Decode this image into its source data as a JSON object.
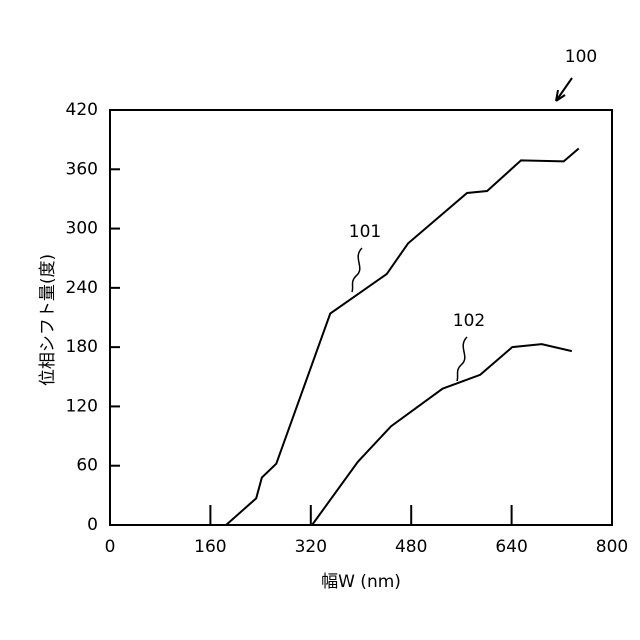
{
  "chart_data": {
    "type": "line",
    "x_label": "幅W (nm)",
    "y_label": "位相シフト量(度)",
    "annotation": "100",
    "xlim": [
      0,
      800
    ],
    "xticks": [
      0,
      160,
      320,
      480,
      640,
      800
    ],
    "ylim": [
      0,
      420
    ],
    "yticks": [
      0,
      60,
      120,
      180,
      240,
      300,
      360,
      420
    ],
    "series": [
      {
        "name": "101",
        "color": "#000000",
        "x": [
          185,
          233,
          242,
          265,
          351,
          441,
          475,
          569,
          601,
          655,
          723,
          747
        ],
        "values": [
          0,
          27,
          48,
          62,
          214,
          254,
          285,
          336,
          338,
          369,
          368,
          381
        ]
      },
      {
        "name": "102",
        "color": "#000000",
        "x": [
          322,
          395,
          448,
          530,
          590,
          641,
          688,
          736
        ],
        "values": [
          0,
          64,
          100,
          138,
          152,
          180,
          183,
          176
        ]
      }
    ]
  }
}
